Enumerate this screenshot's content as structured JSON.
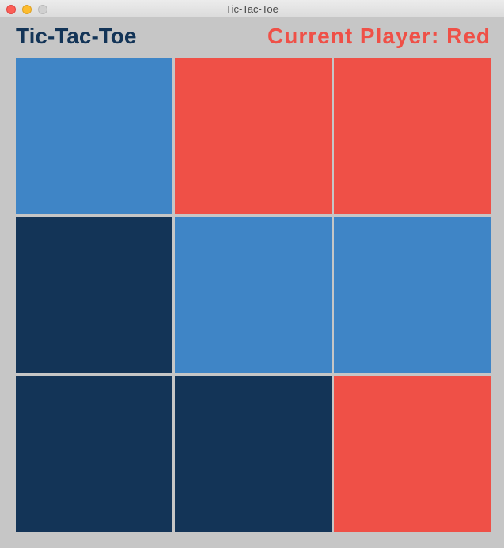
{
  "window": {
    "title": "Tic-Tac-Toe"
  },
  "header": {
    "app_title": "Tic-Tac-Toe",
    "current_player_text": "Current Player: Red"
  },
  "colors": {
    "light_blue": "#3f85c6",
    "red": "#ef5047",
    "dark_navy": "#133457",
    "background": "#c6c6c6",
    "title_text": "#133457",
    "player_text": "#ef5047"
  },
  "board": {
    "cells": [
      {
        "row": 1,
        "col": 1,
        "color": "#3f85c6",
        "color_name": "light blue"
      },
      {
        "row": 1,
        "col": 2,
        "color": "#ef5047",
        "color_name": "red"
      },
      {
        "row": 1,
        "col": 3,
        "color": "#ef5047",
        "color_name": "red"
      },
      {
        "row": 2,
        "col": 1,
        "color": "#133457",
        "color_name": "dark navy"
      },
      {
        "row": 2,
        "col": 2,
        "color": "#3f85c6",
        "color_name": "light blue"
      },
      {
        "row": 2,
        "col": 3,
        "color": "#3f85c6",
        "color_name": "light blue"
      },
      {
        "row": 3,
        "col": 1,
        "color": "#133457",
        "color_name": "dark navy"
      },
      {
        "row": 3,
        "col": 2,
        "color": "#133457",
        "color_name": "dark navy"
      },
      {
        "row": 3,
        "col": 3,
        "color": "#ef5047",
        "color_name": "red"
      }
    ]
  }
}
